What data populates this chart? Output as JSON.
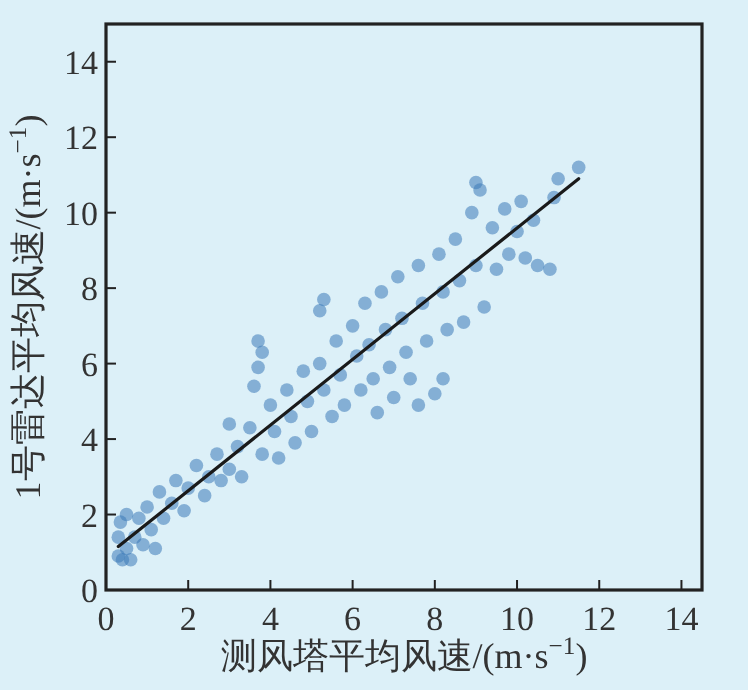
{
  "chart_data": {
    "type": "scatter",
    "xlabel": "测风塔平均风速/(m·s$^{−1}$)",
    "ylabel": "1号雷达平均风速/(m·s$^{−1}$)",
    "xlim": [
      0,
      14.5
    ],
    "ylim": [
      0,
      15
    ],
    "xticks": [
      0,
      2,
      4,
      6,
      8,
      10,
      12,
      14
    ],
    "yticks": [
      0,
      2,
      4,
      6,
      8,
      10,
      12,
      14
    ],
    "grid": false,
    "series": [
      {
        "color": "#3d7ab8",
        "x": [
          0.3,
          0.3,
          0.35,
          0.4,
          0.5,
          0.5,
          0.6,
          0.7,
          0.8,
          0.9,
          1.0,
          1.1,
          1.2,
          1.3,
          1.4,
          1.6,
          1.7,
          1.9,
          2.0,
          2.2,
          2.4,
          2.5,
          2.7,
          2.8,
          3.0,
          3.0,
          3.2,
          3.3,
          3.5,
          3.6,
          3.7,
          3.8,
          3.7,
          3.8,
          4.0,
          4.1,
          4.2,
          4.4,
          4.5,
          4.6,
          4.8,
          4.9,
          5.0,
          5.2,
          5.3,
          5.2,
          5.3,
          5.5,
          5.6,
          5.7,
          5.8,
          6.0,
          6.1,
          6.2,
          6.3,
          6.4,
          6.5,
          6.6,
          6.7,
          6.8,
          6.9,
          7.0,
          7.1,
          7.2,
          7.3,
          7.4,
          7.6,
          7.6,
          7.7,
          7.8,
          8.0,
          8.1,
          8.2,
          8.2,
          8.3,
          8.5,
          8.6,
          8.7,
          8.9,
          9.0,
          9.1,
          9.0,
          9.2,
          9.4,
          9.5,
          9.7,
          9.8,
          10.0,
          10.1,
          10.2,
          10.5,
          10.4,
          10.8,
          10.9,
          11.0,
          11.5
        ],
        "values": [
          0.9,
          1.4,
          1.8,
          0.8,
          1.1,
          2.0,
          0.8,
          1.4,
          1.9,
          1.2,
          2.2,
          1.6,
          1.1,
          2.6,
          1.9,
          2.3,
          2.9,
          2.1,
          2.7,
          3.3,
          2.5,
          3.0,
          3.6,
          2.9,
          4.4,
          3.2,
          3.8,
          3.0,
          4.3,
          5.4,
          6.6,
          6.3,
          5.9,
          3.6,
          4.9,
          4.2,
          3.5,
          5.3,
          4.6,
          3.9,
          5.8,
          5.0,
          4.2,
          7.4,
          7.7,
          6.0,
          5.3,
          4.6,
          6.6,
          5.7,
          4.9,
          7.0,
          6.2,
          5.3,
          7.6,
          6.5,
          5.6,
          4.7,
          7.9,
          6.9,
          5.9,
          5.1,
          8.3,
          7.2,
          6.3,
          5.6,
          4.9,
          8.6,
          7.6,
          6.6,
          5.2,
          8.9,
          5.6,
          7.9,
          6.9,
          9.3,
          8.2,
          7.1,
          10.0,
          10.8,
          10.6,
          8.6,
          7.5,
          9.6,
          8.5,
          10.1,
          8.9,
          9.5,
          10.3,
          8.8,
          8.6,
          9.8,
          8.5,
          10.4,
          10.9,
          11.2
        ]
      },
      {
        "type": "line",
        "color": "#1a1a1a",
        "x": [
          0.3,
          11.5
        ],
        "values": [
          1.15,
          10.9
        ]
      }
    ]
  }
}
